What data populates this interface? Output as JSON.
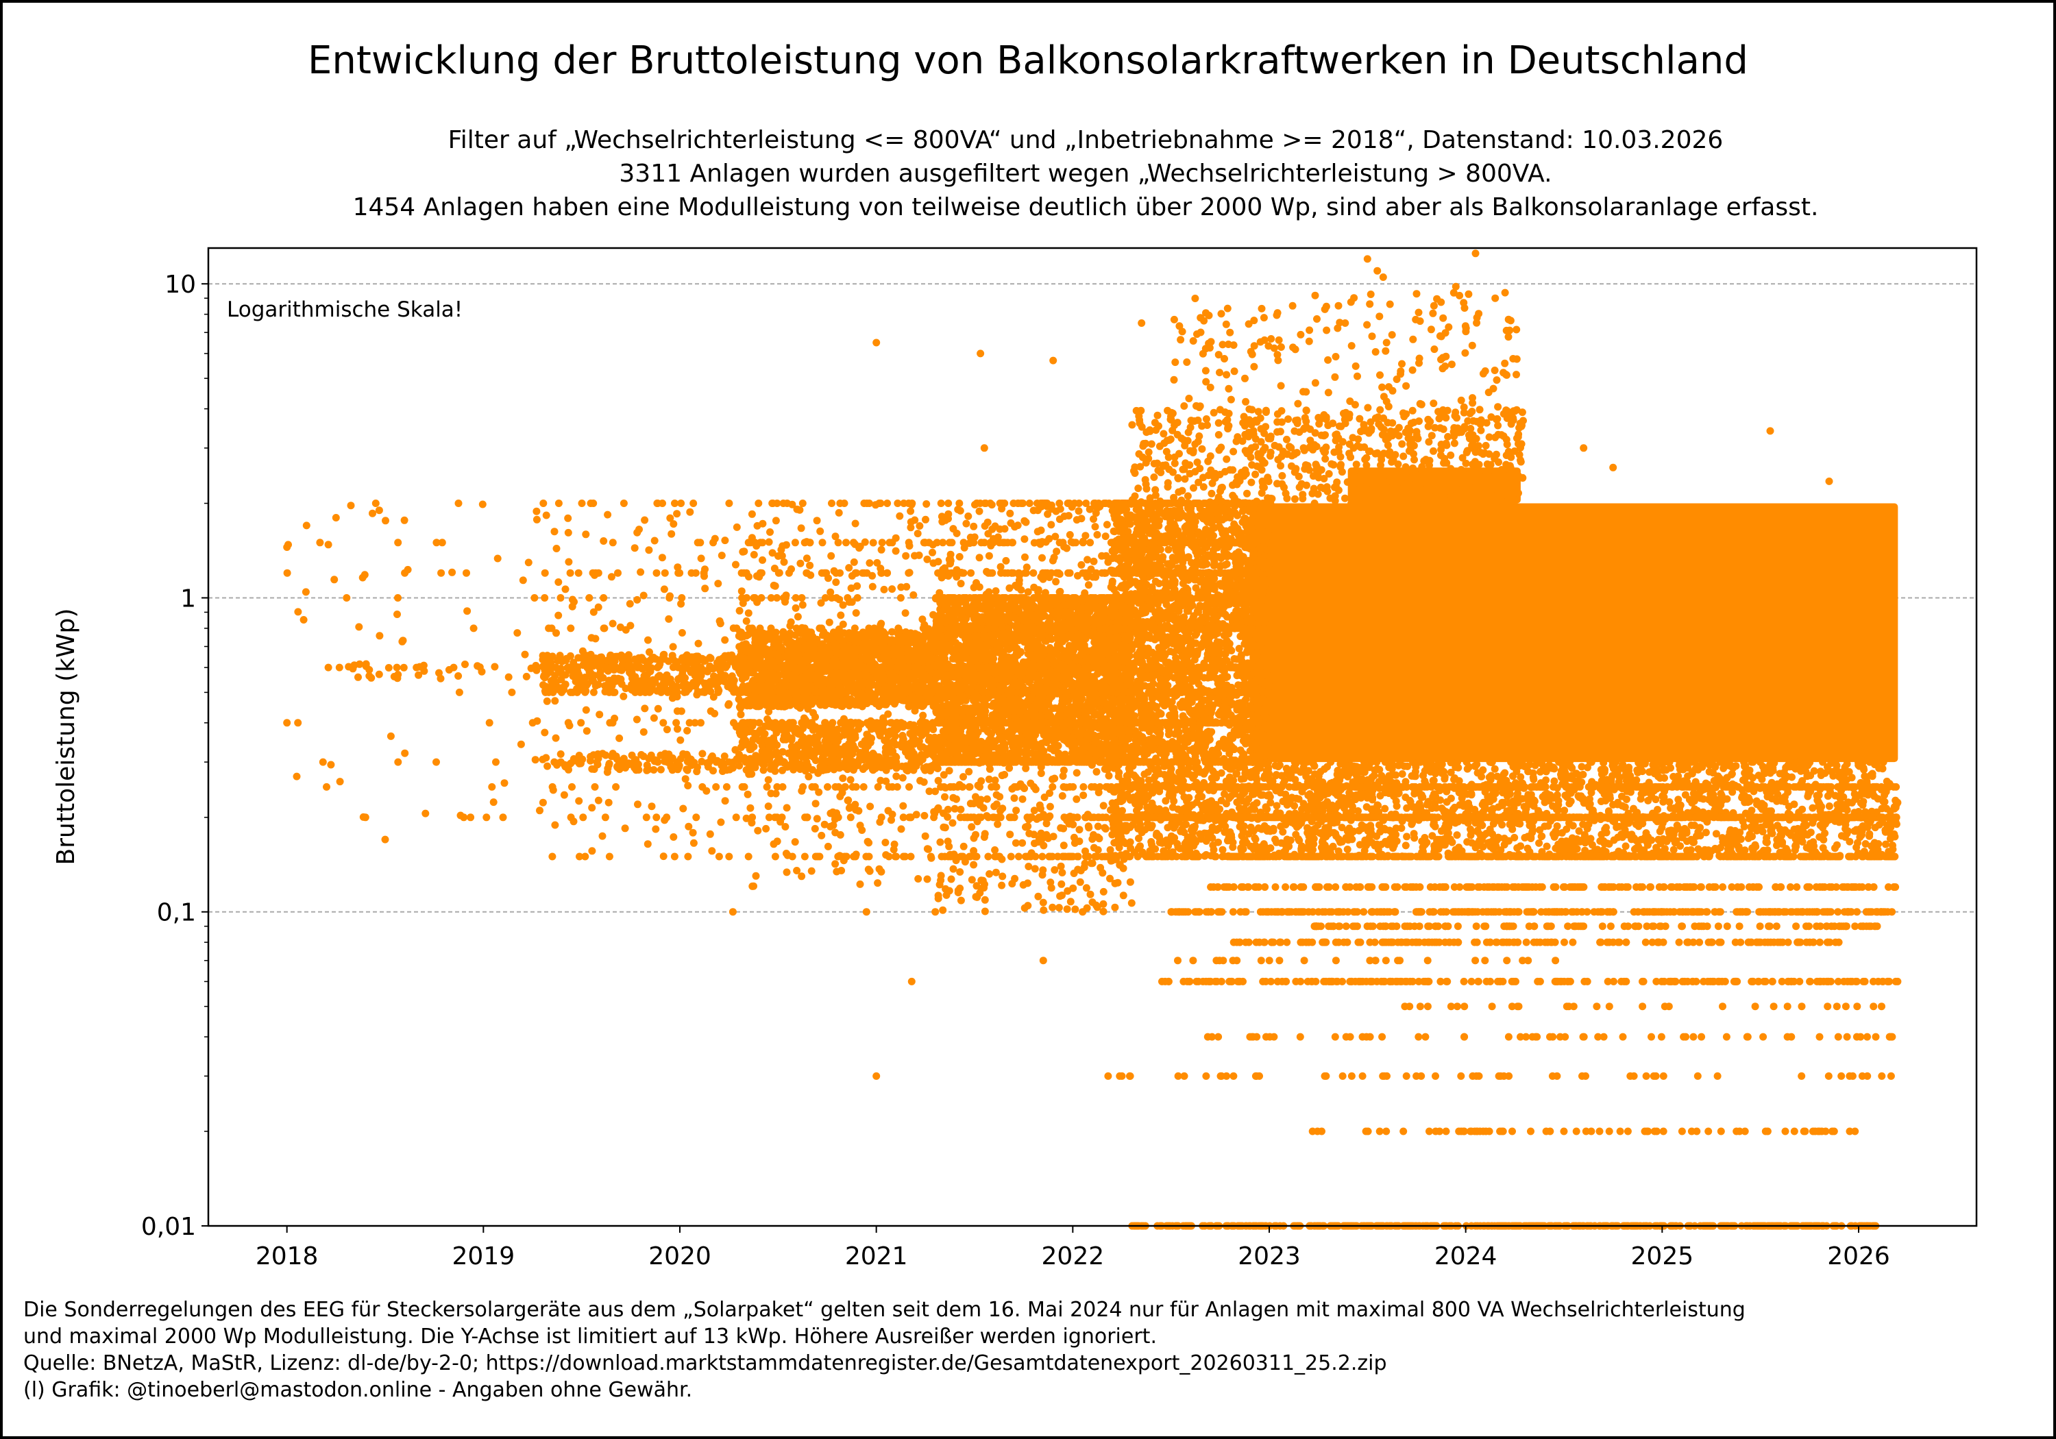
{
  "title": "Entwicklung der Bruttoleistung von Balkonsolarkraftwerken in Deutschland",
  "subtitle_lines": [
    "Filter auf „Wechselrichterleistung <= 800VA“ und „Inbetriebnahme >= 2018“, Datenstand: 10.03.2026",
    "3311 Anlagen wurden ausgefiltert wegen „Wechselrichterleistung > 800VA.",
    "1454 Anlagen haben eine Modulleistung von teilweise deutlich über 2000 Wp, sind aber als Balkonsolaranlage erfasst."
  ],
  "footer_lines": [
    "Die Sonderregelungen des EEG für Steckersolargeräte aus dem „Solarpaket“ gelten seit dem 16. Mai 2024 nur für Anlagen mit maximal 800 VA Wechselrichterleistung",
    "und maximal 2000 Wp Modulleistung. Die Y-Achse ist limitiert auf 13 kWp. Höhere Ausreißer werden ignoriert.",
    "Quelle: BNetzA, MaStR, Lizenz: dl-de/by-2-0; https://download.marktstammdatenregister.de/Gesamtdatenexport_20260311_25.2.zip",
    "(l) Grafik: @tinoeberl@mastodon.online - Angaben ohne Gewähr."
  ],
  "chart_data": {
    "type": "scatter",
    "title": "Entwicklung der Bruttoleistung von Balkonsolarkraftwerken in Deutschland",
    "xlabel": "",
    "ylabel": "Bruttoleistung (kWp)",
    "annotation": "Logarithmische Skala!",
    "yscale": "log",
    "xlim": [
      2017.6,
      2026.6
    ],
    "ylim": [
      0.01,
      13
    ],
    "grid": "y-major-dashed",
    "color": "#ff8c00",
    "x_ticks": [
      2018,
      2019,
      2020,
      2021,
      2022,
      2023,
      2024,
      2025,
      2026
    ],
    "x_tick_labels": [
      "2018",
      "2019",
      "2020",
      "2021",
      "2022",
      "2023",
      "2024",
      "2025",
      "2026"
    ],
    "y_ticks": [
      0.01,
      0.1,
      1,
      10
    ],
    "y_tick_labels": [
      "0,01",
      "0,1",
      "1",
      "10"
    ],
    "saturated_regions": [
      {
        "x": [
          2022.9,
          2026.2
        ],
        "y": [
          0.3,
          2.0
        ]
      },
      {
        "x": [
          2023.4,
          2024.28
        ],
        "y": [
          2.0,
          2.6
        ]
      }
    ],
    "point_clusters": [
      {
        "x": [
          2018.0,
          2019.3
        ],
        "y": [
          0.2,
          2.0
        ],
        "n": 70
      },
      {
        "x": [
          2018.3,
          2019.4
        ],
        "y": [
          0.55,
          0.62
        ],
        "n": 40
      },
      {
        "x": [
          2019.3,
          2020.3
        ],
        "y": [
          0.15,
          2.0
        ],
        "n": 250
      },
      {
        "x": [
          2019.3,
          2020.3
        ],
        "y": [
          0.5,
          0.66
        ],
        "n": 400
      },
      {
        "x": [
          2019.3,
          2020.3
        ],
        "y": [
          0.28,
          0.32
        ],
        "n": 120
      },
      {
        "x": [
          2020.3,
          2021.3
        ],
        "y": [
          0.12,
          2.0
        ],
        "n": 600
      },
      {
        "x": [
          2020.3,
          2021.3
        ],
        "y": [
          0.45,
          0.78
        ],
        "n": 1600
      },
      {
        "x": [
          2020.3,
          2021.3
        ],
        "y": [
          0.28,
          0.4
        ],
        "n": 500
      },
      {
        "x": [
          2021.3,
          2022.3
        ],
        "y": [
          0.1,
          2.0
        ],
        "n": 1200
      },
      {
        "x": [
          2021.3,
          2022.3
        ],
        "y": [
          0.3,
          1.0
        ],
        "n": 3000
      },
      {
        "x": [
          2022.2,
          2023.0
        ],
        "y": [
          0.3,
          2.0
        ],
        "n": 3000
      },
      {
        "x": [
          2022.2,
          2026.2
        ],
        "y": [
          0.15,
          0.3
        ],
        "n": 2600
      },
      {
        "x": [
          2022.3,
          2024.3
        ],
        "y": [
          2.0,
          4.0
        ],
        "n": 700
      },
      {
        "x": [
          2022.5,
          2024.3
        ],
        "y": [
          4.0,
          9.5
        ],
        "n": 180
      }
    ],
    "value_levels": [
      {
        "y": 0.25,
        "x": [
          2022.2,
          2026.2
        ],
        "n": 300
      },
      {
        "y": 0.2,
        "x": [
          2022.2,
          2026.2
        ],
        "n": 500
      },
      {
        "y": 0.15,
        "x": [
          2022.4,
          2026.2
        ],
        "n": 350
      },
      {
        "y": 0.12,
        "x": [
          2022.7,
          2026.2
        ],
        "n": 200
      },
      {
        "y": 0.1,
        "x": [
          2022.5,
          2026.2
        ],
        "n": 300
      },
      {
        "y": 0.09,
        "x": [
          2023.2,
          2026.1
        ],
        "n": 120
      },
      {
        "y": 0.08,
        "x": [
          2022.8,
          2025.9
        ],
        "n": 160
      },
      {
        "y": 0.07,
        "x": [
          2022.4,
          2024.5
        ],
        "n": 25
      },
      {
        "y": 0.06,
        "x": [
          2022.45,
          2026.2
        ],
        "n": 200
      },
      {
        "y": 0.05,
        "x": [
          2023.3,
          2026.2
        ],
        "n": 30
      },
      {
        "y": 0.04,
        "x": [
          2022.6,
          2026.2
        ],
        "n": 60
      },
      {
        "y": 0.03,
        "x": [
          2022.2,
          2026.2
        ],
        "n": 55
      },
      {
        "y": 0.02,
        "x": [
          2023.2,
          2026.0
        ],
        "n": 70
      },
      {
        "y": 0.01,
        "x": [
          2022.3,
          2026.1
        ],
        "n": 450
      }
    ],
    "outliers": [
      [
        2018.0,
        1.45
      ],
      [
        2018.1,
        1.7
      ],
      [
        2018.25,
        1.8
      ],
      [
        2018.47,
        1.9
      ],
      [
        2018.0,
        0.4
      ],
      [
        2018.05,
        0.27
      ],
      [
        2018.5,
        0.17
      ],
      [
        2018.27,
        0.26
      ],
      [
        2018.4,
        0.2
      ],
      [
        2018.6,
        0.32
      ],
      [
        2018.9,
        0.2
      ],
      [
        2019.1,
        0.2
      ],
      [
        2021.0,
        6.5
      ],
      [
        2021.53,
        6.0
      ],
      [
        2021.9,
        5.7
      ],
      [
        2021.0,
        0.03
      ],
      [
        2021.18,
        0.06
      ],
      [
        2020.27,
        0.1
      ],
      [
        2020.95,
        0.1
      ],
      [
        2021.3,
        0.1
      ],
      [
        2021.55,
        3.0
      ],
      [
        2021.85,
        0.07
      ],
      [
        2022.05,
        0.1
      ],
      [
        2022.18,
        0.03
      ],
      [
        2022.35,
        7.5
      ],
      [
        2022.65,
        7.8
      ],
      [
        2022.8,
        7.0
      ],
      [
        2023.5,
        12.0
      ],
      [
        2023.55,
        11.0
      ],
      [
        2023.58,
        10.5
      ],
      [
        2024.05,
        12.5
      ],
      [
        2023.95,
        9.8
      ],
      [
        2023.75,
        9.3
      ],
      [
        2024.15,
        9.0
      ],
      [
        2024.6,
        3.0
      ],
      [
        2024.75,
        2.6
      ],
      [
        2025.55,
        3.4
      ],
      [
        2025.85,
        2.35
      ],
      [
        2025.8,
        0.06
      ],
      [
        2026.15,
        0.06
      ]
    ]
  }
}
